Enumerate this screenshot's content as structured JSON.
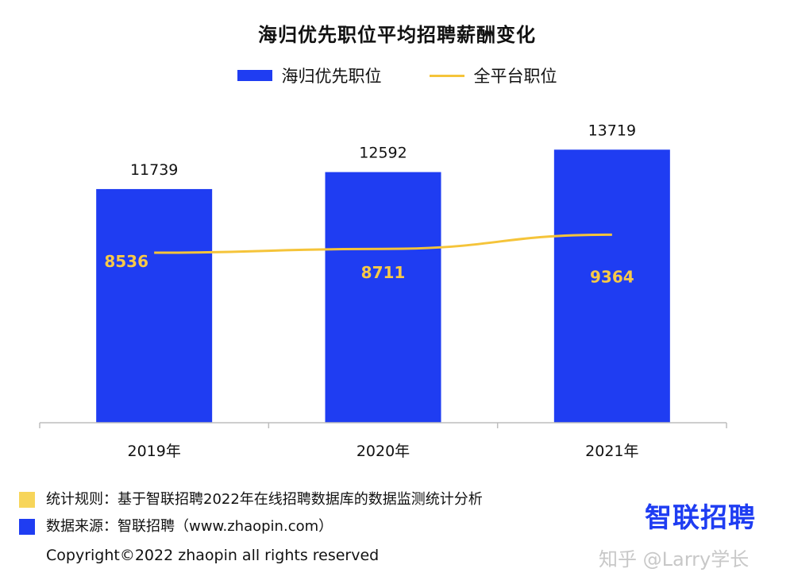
{
  "chart_data": {
    "type": "bar",
    "title": "海归优先职位平均招聘薪酬变化",
    "categories": [
      "2019年",
      "2020年",
      "2021年"
    ],
    "series": [
      {
        "name": "海归优先职位",
        "type": "bar",
        "values": [
          11739,
          12592,
          13719
        ]
      },
      {
        "name": "全平台职位",
        "type": "line",
        "values": [
          8536,
          8711,
          9364
        ]
      }
    ],
    "ylim": [
      0,
      14500
    ],
    "grid": false,
    "legend": "top-center"
  },
  "colors": {
    "bar": "#1f3df2",
    "line": "#f5c43a",
    "line_label": "#f7c948",
    "note_rule_square": "#f7d55a",
    "note_source_square": "#1f3df2"
  },
  "footer": {
    "rule_note": "统计规则：基于智联招聘2022年在线招聘数据库的数据监测统计分析",
    "source_note": "数据来源：智联招聘（www.zhaopin.com）",
    "brand": "智联招聘",
    "copyright": "Copyright©2022 zhaopin all rights reserved",
    "watermark": "知乎 @Larry学长"
  }
}
